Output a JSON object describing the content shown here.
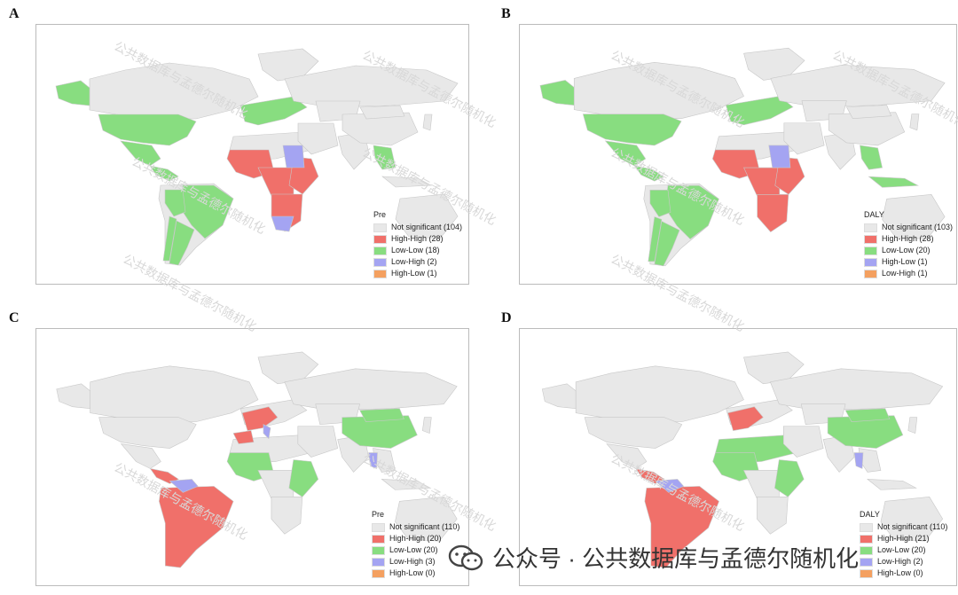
{
  "colors": {
    "not_significant": "#e8e8e8",
    "high_high": "#f0706a",
    "low_low": "#88dd80",
    "low_high": "#a4a4f2",
    "high_low": "#f4a060",
    "border": "#c8c8c8",
    "watermark": "#d8d8d8"
  },
  "watermark_text": "公共数据库与孟德尔随机化",
  "footer": {
    "icon": "wechat-icon",
    "text": "公众号 · 公共数据库与孟德尔随机化"
  },
  "panels": [
    {
      "letter": "A",
      "legend": {
        "title": "Pre",
        "items": [
          {
            "label": "Not significant (104)",
            "color": "#e8e8e8"
          },
          {
            "label": "High-High (28)",
            "color": "#f0706a"
          },
          {
            "label": "Low-Low (18)",
            "color": "#88dd80"
          },
          {
            "label": "Low-High (2)",
            "color": "#a4a4f2"
          },
          {
            "label": "High-Low (1)",
            "color": "#f4a060"
          }
        ]
      },
      "regions": {
        "high_high": [
          "West Africa",
          "Central Africa",
          "East Africa",
          "Southern Africa"
        ],
        "low_low": [
          "Alaska",
          "United States",
          "Mexico",
          "Central America",
          "Brazil",
          "Peru",
          "Chile",
          "Argentina",
          "Europe",
          "Southeast Asia"
        ],
        "low_high": [
          "Sudan",
          "South Africa"
        ]
      }
    },
    {
      "letter": "B",
      "legend": {
        "title": "DALY",
        "items": [
          {
            "label": "Not significant (103)",
            "color": "#e8e8e8"
          },
          {
            "label": "High-High (28)",
            "color": "#f0706a"
          },
          {
            "label": "Low-Low (20)",
            "color": "#88dd80"
          },
          {
            "label": "High-Low (1)",
            "color": "#a4a4f2"
          },
          {
            "label": "Low-High (1)",
            "color": "#f4a060"
          }
        ]
      },
      "regions": {
        "high_high": [
          "West Africa",
          "Central Africa",
          "East Africa",
          "Southern Africa"
        ],
        "low_low": [
          "Alaska",
          "United States",
          "Mexico",
          "Central America",
          "Brazil",
          "Peru",
          "Chile",
          "Argentina",
          "Europe",
          "Southeast Asia",
          "Indonesia"
        ],
        "low_high": [
          "Sudan"
        ]
      }
    },
    {
      "letter": "C",
      "legend": {
        "title": "Pre",
        "items": [
          {
            "label": "Not significant (110)",
            "color": "#e8e8e8"
          },
          {
            "label": "High-High (20)",
            "color": "#f0706a"
          },
          {
            "label": "Low-Low (20)",
            "color": "#88dd80"
          },
          {
            "label": "Low-High (3)",
            "color": "#a4a4f2"
          },
          {
            "label": "High-Low (0)",
            "color": "#f4a060"
          }
        ]
      },
      "regions": {
        "high_high": [
          "Central America",
          "South America",
          "Western Europe",
          "Morocco"
        ],
        "low_low": [
          "China",
          "Mongolia",
          "West Africa",
          "East Africa"
        ],
        "low_high": [
          "Venezuela",
          "Italy",
          "Thailand"
        ]
      }
    },
    {
      "letter": "D",
      "legend": {
        "title": "DALY",
        "items": [
          {
            "label": "Not significant (110)",
            "color": "#e8e8e8"
          },
          {
            "label": "High-High (21)",
            "color": "#f0706a"
          },
          {
            "label": "Low-Low (20)",
            "color": "#88dd80"
          },
          {
            "label": "Low-High (2)",
            "color": "#a4a4f2"
          },
          {
            "label": "High-Low (0)",
            "color": "#f4a060"
          }
        ]
      },
      "regions": {
        "high_high": [
          "Central America",
          "South America",
          "Western Europe"
        ],
        "low_low": [
          "China",
          "Mongolia",
          "North Africa",
          "West Africa",
          "East Africa"
        ],
        "low_high": [
          "Venezuela",
          "Thailand"
        ]
      }
    }
  ]
}
